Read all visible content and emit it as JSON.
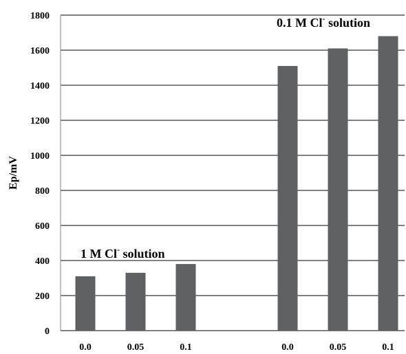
{
  "chart_data": {
    "type": "bar",
    "title": "",
    "xlabel": "",
    "ylabel": "Ep/mV",
    "ylim": [
      0,
      1800
    ],
    "yticks": [
      0,
      200,
      400,
      600,
      800,
      1000,
      1200,
      1400,
      1600,
      1800
    ],
    "grid": true,
    "legend": "none",
    "colors": {
      "bar": "#5f6061",
      "grid": "#000000",
      "axis": "#888888"
    },
    "groups": [
      {
        "annotation": {
          "prefix": "1 M Cl",
          "sup": "-",
          "suffix": " solution"
        },
        "categories": [
          "0.0",
          "0.05",
          "0.1"
        ],
        "values": [
          310,
          330,
          380
        ]
      },
      {
        "annotation": {
          "prefix": "0.1 M Cl",
          "sup": "-",
          "suffix": " solution"
        },
        "categories": [
          "0.0",
          "0.05",
          "0.1"
        ],
        "values": [
          1510,
          1610,
          1680
        ]
      }
    ]
  }
}
